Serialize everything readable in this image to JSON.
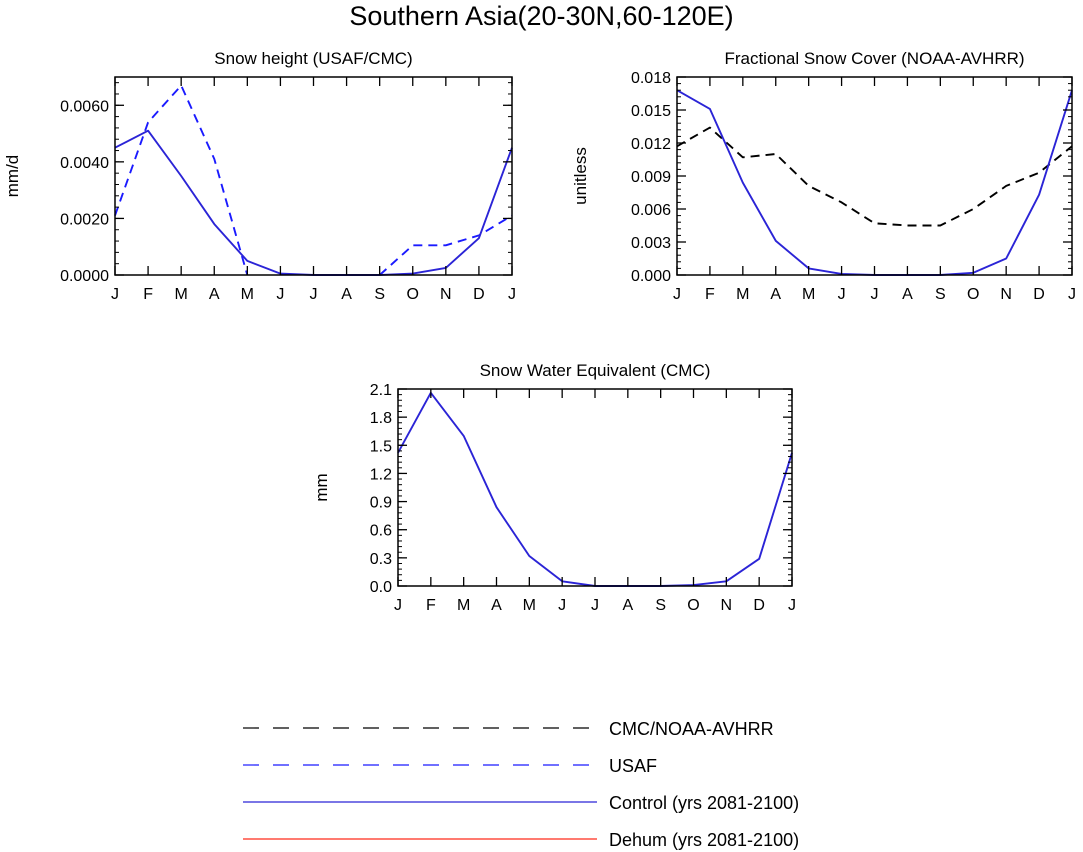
{
  "figure": {
    "title": "Southern Asia(20-30N,60-120E)"
  },
  "colors": {
    "cmc_noaa": "#000000",
    "usaf": "#1a1aff",
    "control": "#2b24d6",
    "dehum": "#ff2a1a"
  },
  "legend": [
    {
      "label": "CMC/NOAA-AVHRR",
      "color": "#000000",
      "style": "dashed"
    },
    {
      "label": "USAF",
      "color": "#1a1aff",
      "style": "dashed"
    },
    {
      "label": "Control (yrs 2081-2100)",
      "color": "#2b24d6",
      "style": "solid"
    },
    {
      "label": "Dehum (yrs 2081-2100)",
      "color": "#ff2a1a",
      "style": "solid"
    }
  ],
  "chart_data": [
    {
      "type": "line",
      "title": "Snow height (USAF/CMC)",
      "ylabel": "mm/d",
      "x": [
        "J",
        "F",
        "M",
        "A",
        "M",
        "J",
        "J",
        "A",
        "S",
        "O",
        "N",
        "D",
        "J"
      ],
      "ylim": [
        0,
        0.007
      ],
      "yticks": [
        "0.0000",
        "0.0020",
        "0.0040",
        "0.0060"
      ],
      "ytick_values": [
        0,
        0.002,
        0.004,
        0.006
      ],
      "series": [
        {
          "name": "USAF",
          "style": "dashed",
          "color": "#1a1aff",
          "values": [
            0.0021,
            0.0054,
            0.0067,
            0.0041,
            0.0,
            null,
            null,
            null,
            0.0,
            0.00105,
            0.00105,
            0.0014,
            0.0021
          ]
        },
        {
          "name": "Control (yrs 2081-2100)",
          "style": "solid",
          "color": "#2b24d6",
          "values": [
            0.0045,
            0.0051,
            0.0035,
            0.0018,
            0.0005,
            5e-05,
            0.0,
            0.0,
            0.0,
            5e-05,
            0.00025,
            0.0013,
            0.0045
          ]
        },
        {
          "name": "Dehum (yrs 2081-2100)",
          "style": "solid",
          "color": "#ff2a1a",
          "values": [
            0,
            0,
            0,
            0,
            0,
            0,
            0,
            0,
            0,
            0,
            0,
            0,
            0
          ]
        }
      ]
    },
    {
      "type": "line",
      "title": "Fractional Snow Cover (NOAA-AVHRR)",
      "ylabel": "unitless",
      "x": [
        "J",
        "F",
        "M",
        "A",
        "M",
        "J",
        "J",
        "A",
        "S",
        "O",
        "N",
        "D",
        "J"
      ],
      "ylim": [
        0,
        0.018
      ],
      "yticks": [
        "0.000",
        "0.003",
        "0.006",
        "0.009",
        "0.012",
        "0.015",
        "0.018"
      ],
      "ytick_values": [
        0,
        0.003,
        0.006,
        0.009,
        0.012,
        0.015,
        0.018
      ],
      "series": [
        {
          "name": "CMC/NOAA-AVHRR",
          "style": "dashed",
          "color": "#000000",
          "values": [
            0.0117,
            0.0134,
            0.0107,
            0.011,
            0.0081,
            0.0066,
            0.0047,
            0.0045,
            0.0045,
            0.006,
            0.0081,
            0.0093,
            0.0117
          ]
        },
        {
          "name": "Control (yrs 2081-2100)",
          "style": "solid",
          "color": "#2b24d6",
          "values": [
            0.0168,
            0.0151,
            0.0084,
            0.0031,
            0.0006,
            0.0001,
            0.0,
            0.0,
            0.0,
            0.0002,
            0.0015,
            0.0073,
            0.0168
          ]
        },
        {
          "name": "Dehum (yrs 2081-2100)",
          "style": "solid",
          "color": "#ff2a1a",
          "values": [
            0,
            0,
            0,
            0,
            0,
            0,
            0,
            0,
            0,
            0,
            0,
            0,
            0
          ]
        }
      ]
    },
    {
      "type": "line",
      "title": "Snow Water Equivalent (CMC)",
      "ylabel": "mm",
      "x": [
        "J",
        "F",
        "M",
        "A",
        "M",
        "J",
        "J",
        "A",
        "S",
        "O",
        "N",
        "D",
        "J"
      ],
      "ylim": [
        0,
        2.1
      ],
      "yticks": [
        "0.0",
        "0.3",
        "0.6",
        "0.9",
        "1.2",
        "1.5",
        "1.8",
        "2.1"
      ],
      "ytick_values": [
        0,
        0.3,
        0.6,
        0.9,
        1.2,
        1.5,
        1.8,
        2.1
      ],
      "series": [
        {
          "name": "Control (yrs 2081-2100)",
          "style": "solid",
          "color": "#2b24d6",
          "values": [
            1.42,
            2.06,
            1.6,
            0.84,
            0.32,
            0.05,
            0.0,
            0.0,
            0.0,
            0.01,
            0.05,
            0.29,
            1.42
          ]
        },
        {
          "name": "Dehum (yrs 2081-2100)",
          "style": "solid",
          "color": "#ff2a1a",
          "values": [
            0,
            0,
            0,
            0,
            0,
            0,
            0,
            0,
            0,
            0,
            0,
            0,
            0
          ]
        }
      ]
    }
  ]
}
